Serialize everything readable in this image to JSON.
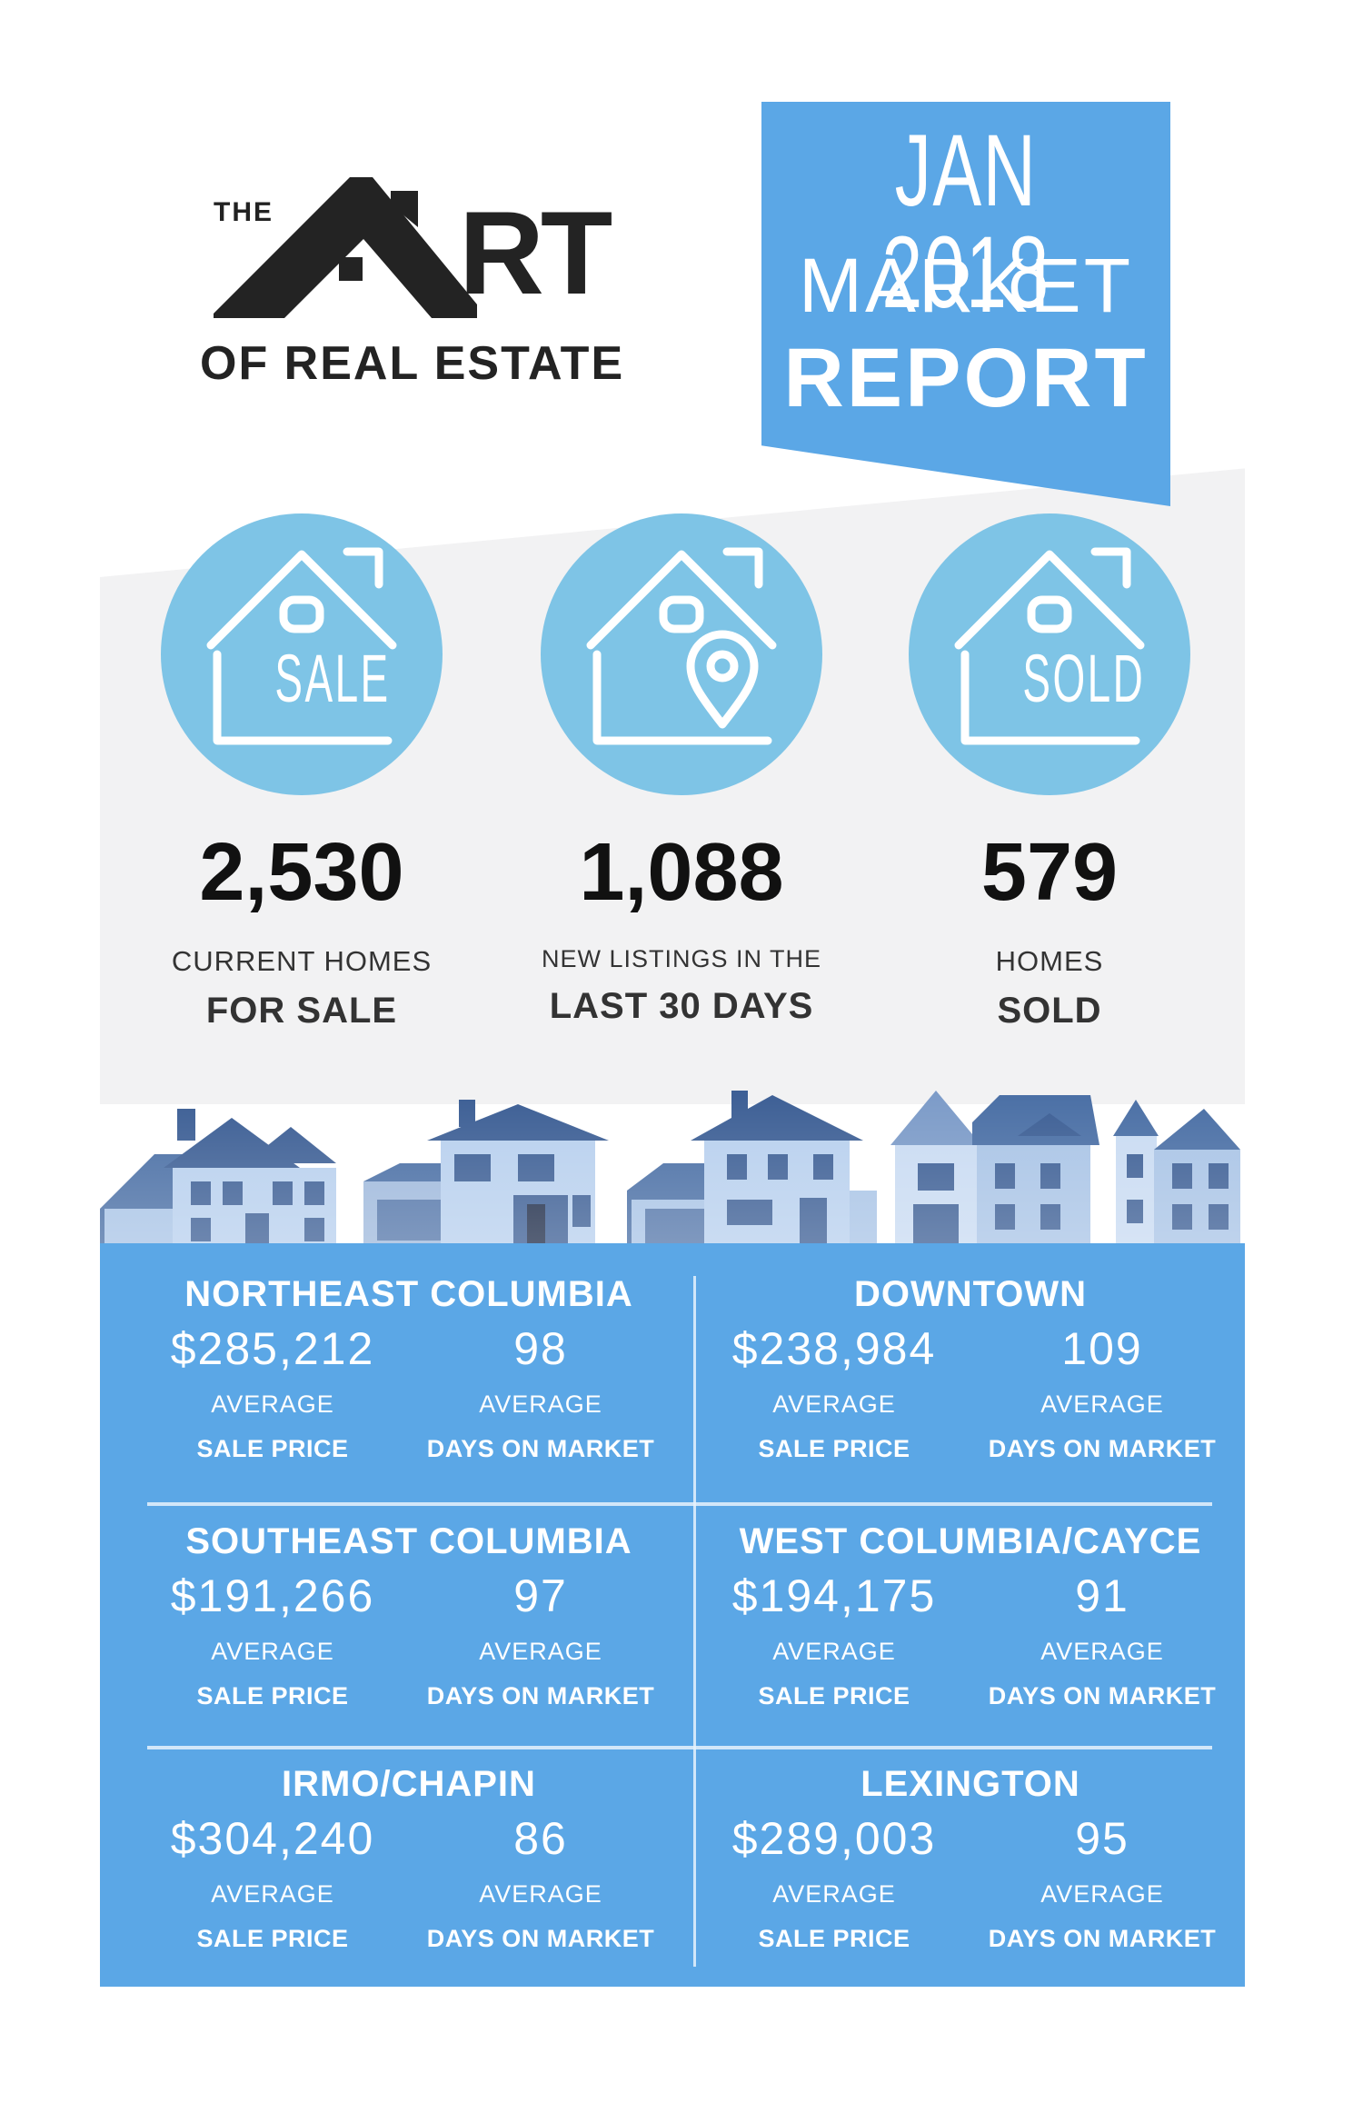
{
  "logo": {
    "the": "THE",
    "main": "ART",
    "sub": "OF REAL ESTATE"
  },
  "banner": {
    "month": "JAN 2018",
    "line2": "MARKET",
    "line3": "REPORT",
    "color": "#5ba7e6"
  },
  "stats": [
    {
      "icon": "house-sale-sign-icon",
      "sign": "SALE",
      "value": "2,530",
      "line1": "CURRENT HOMES",
      "line2": "FOR SALE"
    },
    {
      "icon": "house-location-pin-icon",
      "sign": "",
      "value": "1,088",
      "line1": "NEW LISTINGS IN THE",
      "line2": "LAST 30 DAYS"
    },
    {
      "icon": "house-sold-sign-icon",
      "sign": "SOLD",
      "value": "579",
      "line1": "HOMES",
      "line2": "SOLD"
    }
  ],
  "regions": [
    {
      "name": "NORTHEAST COLUMBIA",
      "price": "$285,212",
      "days": "98",
      "price_l1": "AVERAGE",
      "price_l2": "SALE PRICE",
      "days_l1": "AVERAGE",
      "days_l2": "DAYS ON MARKET"
    },
    {
      "name": "DOWNTOWN",
      "price": "$238,984",
      "days": "109",
      "price_l1": "AVERAGE",
      "price_l2": "SALE PRICE",
      "days_l1": "AVERAGE",
      "days_l2": "DAYS ON MARKET"
    },
    {
      "name": "SOUTHEAST COLUMBIA",
      "price": "$191,266",
      "days": "97",
      "price_l1": "AVERAGE",
      "price_l2": "SALE PRICE",
      "days_l1": "AVERAGE",
      "days_l2": "DAYS ON MARKET"
    },
    {
      "name": "WEST COLUMBIA/CAYCE",
      "price": "$194,175",
      "days": "91",
      "price_l1": "AVERAGE",
      "price_l2": "SALE PRICE",
      "days_l1": "AVERAGE",
      "days_l2": "DAYS ON MARKET"
    },
    {
      "name": "IRMO/CHAPIN",
      "price": "$304,240",
      "days": "86",
      "price_l1": "AVERAGE",
      "price_l2": "SALE PRICE",
      "days_l1": "AVERAGE",
      "days_l2": "DAYS ON MARKET"
    },
    {
      "name": "LEXINGTON",
      "price": "$289,003",
      "days": "95",
      "price_l1": "AVERAGE",
      "price_l2": "SALE PRICE",
      "days_l1": "AVERAGE",
      "days_l2": "DAYS ON MARKET"
    }
  ]
}
